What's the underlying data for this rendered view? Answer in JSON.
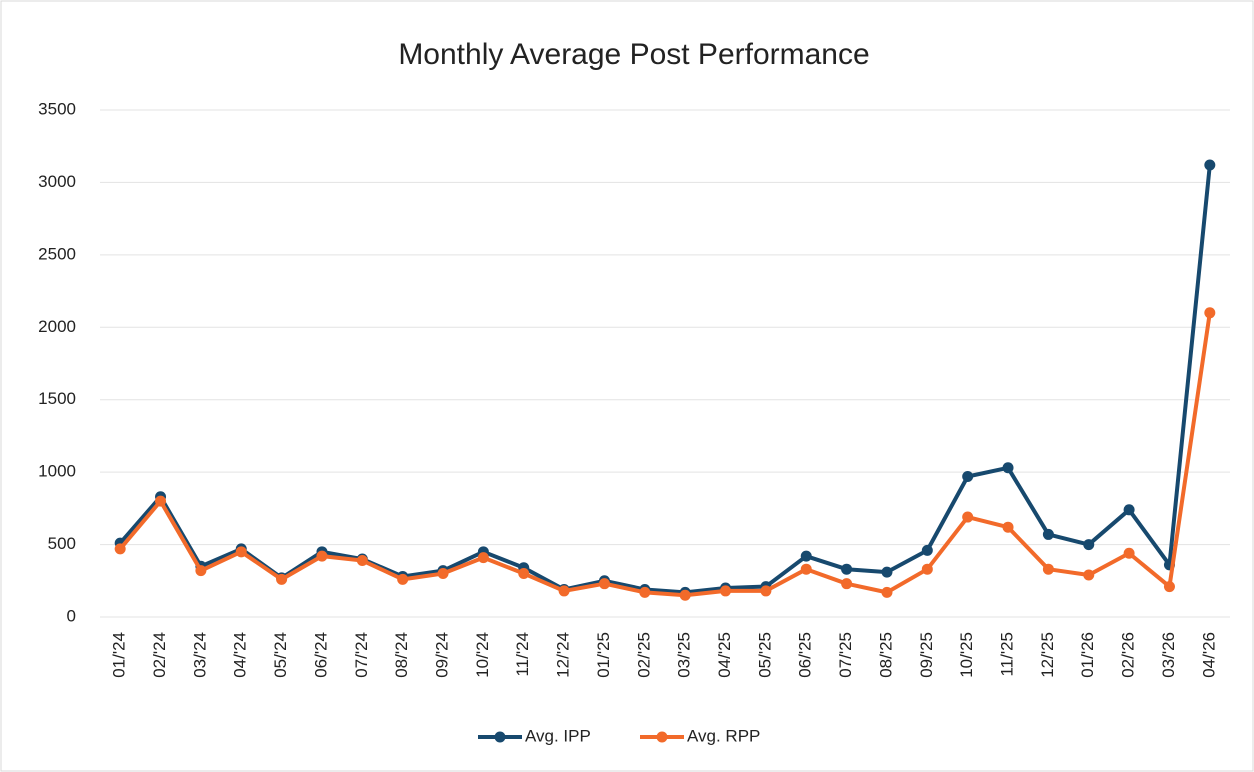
{
  "chart_data": {
    "type": "line",
    "title": "Monthly Average Post Performance",
    "categories": [
      "01/'24",
      "02/'24",
      "03/'24",
      "04/'24",
      "05/'24",
      "06/'24",
      "07/'24",
      "08/'24",
      "09/'24",
      "10/'24",
      "11/'24",
      "12/'24",
      "01/'25",
      "02/'25",
      "03/'25",
      "04/'25",
      "05/'25",
      "06/'25",
      "07/'25",
      "08/'25",
      "09/'25",
      "10/'25",
      "11/'25",
      "12/'25",
      "01/'26",
      "02/'26",
      "03/'26",
      "04/'26"
    ],
    "series": [
      {
        "name": "Avg. IPP",
        "color": "#17496e",
        "values": [
          510,
          830,
          350,
          470,
          270,
          450,
          400,
          280,
          320,
          450,
          340,
          190,
          250,
          190,
          170,
          200,
          210,
          420,
          330,
          310,
          460,
          970,
          1030,
          570,
          500,
          740,
          360,
          3120
        ]
      },
      {
        "name": "Avg. RPP",
        "color": "#f26a2a",
        "values": [
          470,
          800,
          320,
          450,
          260,
          420,
          390,
          260,
          300,
          410,
          300,
          180,
          230,
          170,
          150,
          180,
          180,
          330,
          230,
          170,
          330,
          690,
          620,
          330,
          290,
          440,
          210,
          2100
        ]
      }
    ],
    "ylim": [
      0,
      3500
    ],
    "yticks": [
      0,
      500,
      1000,
      1500,
      2000,
      2500,
      3000,
      3500
    ],
    "grid": true,
    "legend": "bottom"
  }
}
